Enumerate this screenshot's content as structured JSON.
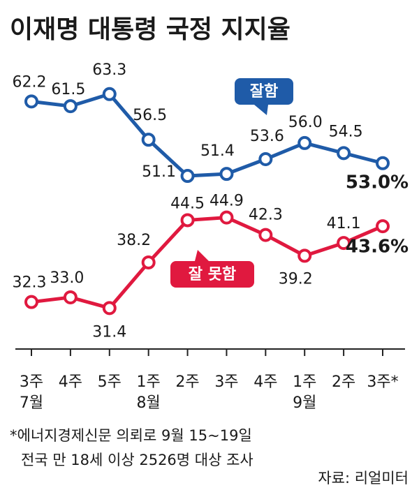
{
  "chart_data": {
    "type": "line",
    "title": "이재명 대통령 국정 지지율",
    "categories": [
      "3주",
      "4주",
      "5주",
      "1주",
      "2주",
      "3주",
      "4주",
      "1주",
      "2주",
      "3주*"
    ],
    "month_labels": [
      "7월",
      null,
      null,
      "8월",
      null,
      null,
      null,
      "9월",
      null,
      null
    ],
    "series": [
      {
        "name": "잘함",
        "color": "#1f5ba8",
        "values": [
          62.2,
          61.5,
          63.3,
          56.5,
          51.1,
          51.4,
          53.6,
          56.0,
          54.5,
          53.0
        ],
        "value_labels": [
          "62.2",
          "61.5",
          "63.3",
          "56.5",
          "51.1",
          "51.4",
          "53.6",
          "56.0",
          "54.5",
          "53.0%"
        ]
      },
      {
        "name": "잘 못함",
        "color": "#e0193f",
        "values": [
          32.3,
          33.0,
          31.4,
          38.2,
          44.5,
          44.9,
          42.3,
          39.2,
          41.1,
          43.6
        ],
        "value_labels": [
          "32.3",
          "33.0",
          "31.4",
          "38.2",
          "44.5",
          "44.9",
          "42.3",
          "39.2",
          "41.1",
          "43.6%"
        ]
      }
    ],
    "ylim": [
      28,
      69
    ],
    "notes": [
      "*에너지경제신문 의뢰로 9월 15~19일",
      "전국 만 18세 이상 2526명 대상 조사"
    ],
    "source": "자료: 리얼미터"
  }
}
